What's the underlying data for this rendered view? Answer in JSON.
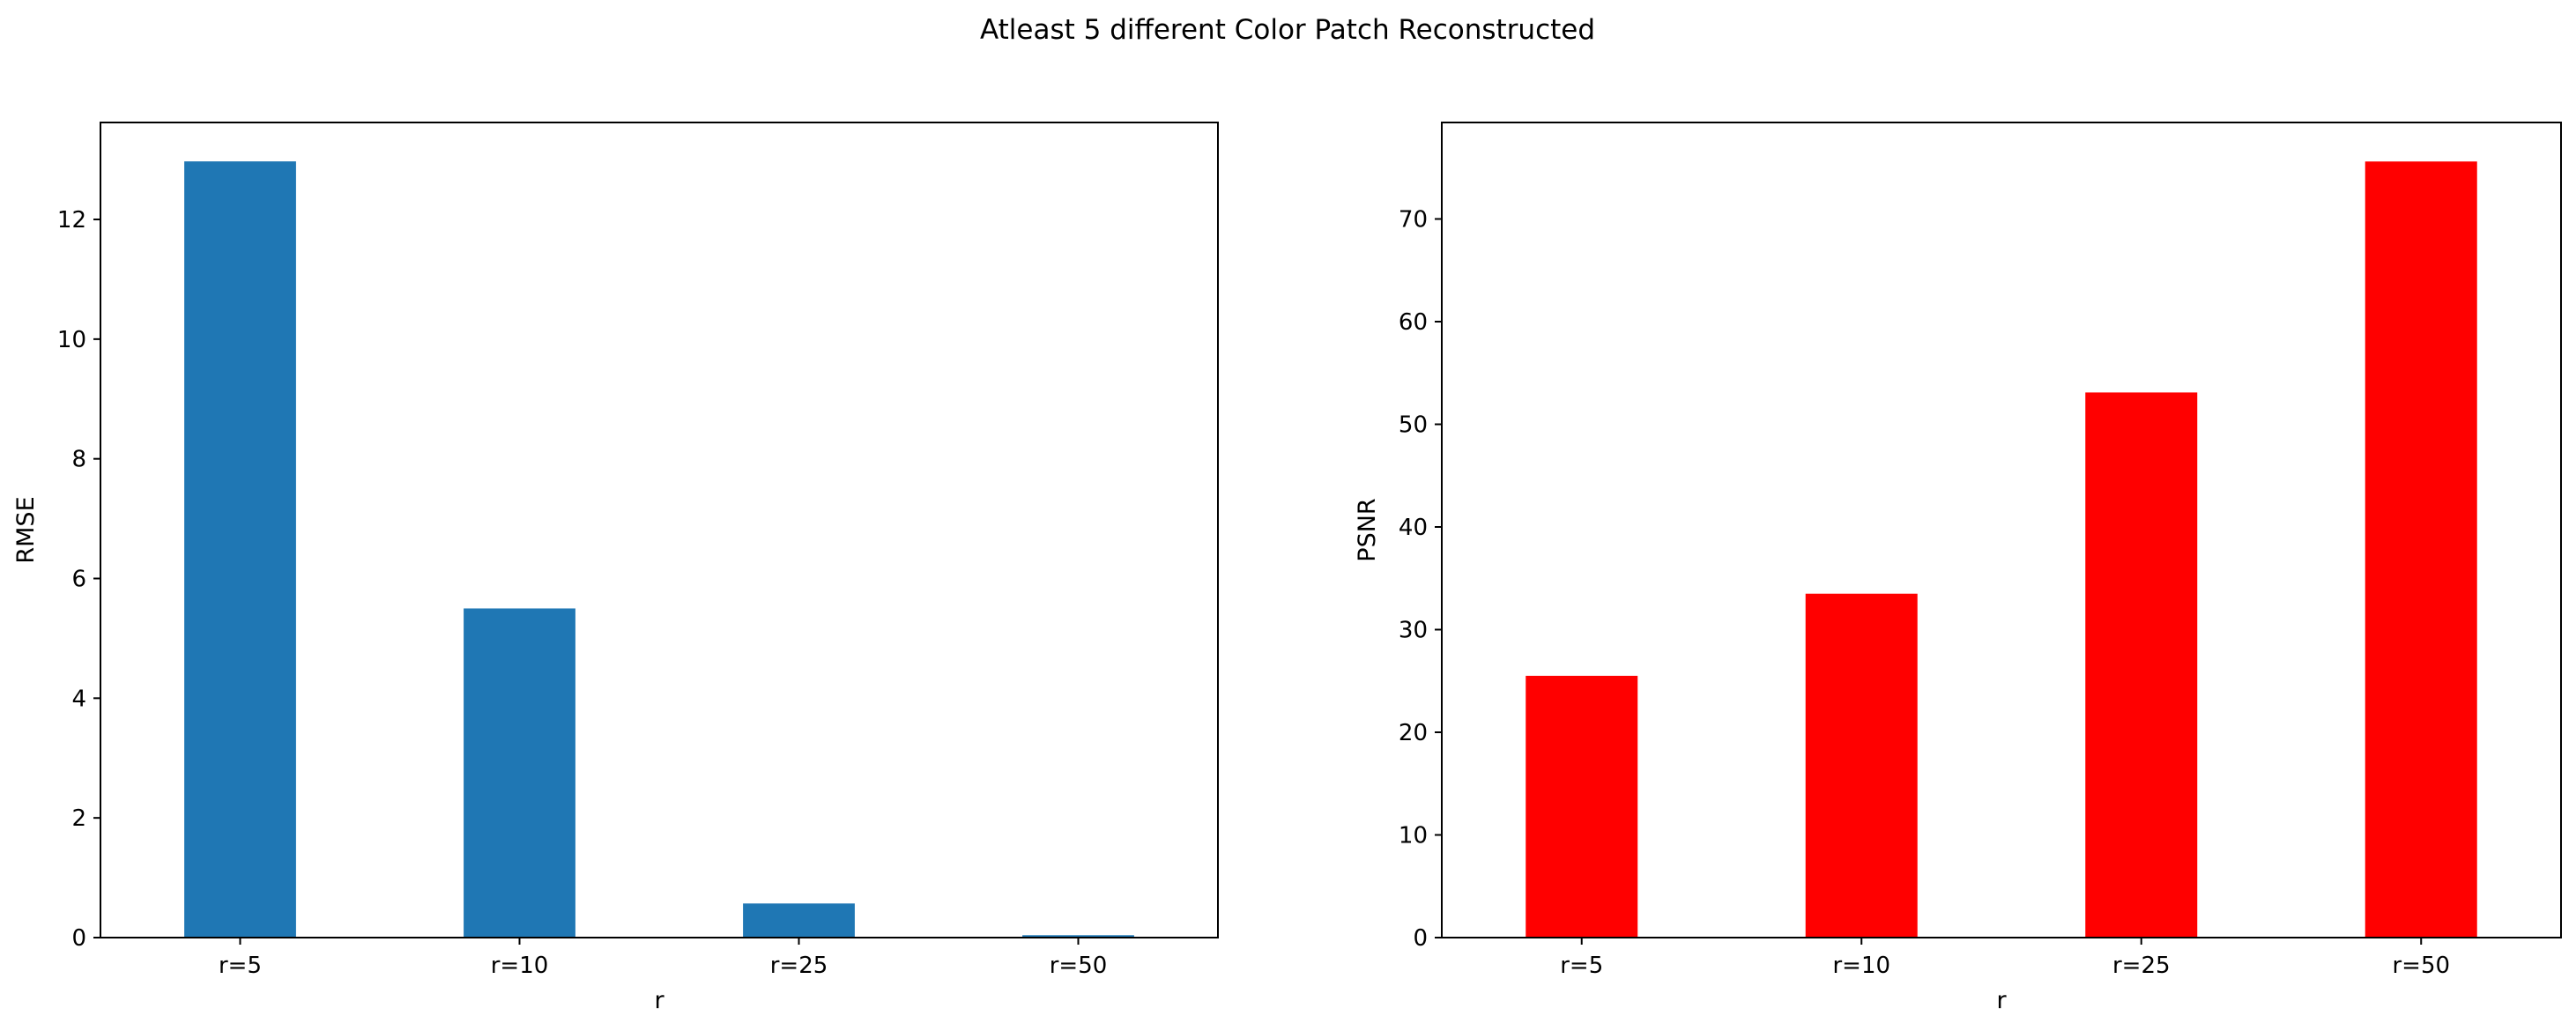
{
  "suptitle": "Atleast 5 different Color Patch Reconstructed",
  "chart_data": [
    {
      "type": "bar",
      "title": "",
      "xlabel": "r",
      "ylabel": "RMSE",
      "categories": [
        "r=5",
        "r=10",
        "r=25",
        "r=50"
      ],
      "values": [
        12.97,
        5.5,
        0.57,
        0.04
      ],
      "ylim": [
        0,
        13.62
      ],
      "yticks": [
        0,
        2,
        4,
        6,
        8,
        10,
        12
      ],
      "bar_color": "#1f77b4",
      "grid": false,
      "legend": "none"
    },
    {
      "type": "bar",
      "title": "",
      "xlabel": "r",
      "ylabel": "PSNR",
      "categories": [
        "r=5",
        "r=10",
        "r=25",
        "r=50"
      ],
      "values": [
        25.5,
        33.5,
        53.1,
        75.6
      ],
      "ylim": [
        0,
        79.4
      ],
      "yticks": [
        0,
        10,
        20,
        30,
        40,
        50,
        60,
        70
      ],
      "bar_color": "#ff0000",
      "grid": false,
      "legend": "none"
    }
  ]
}
